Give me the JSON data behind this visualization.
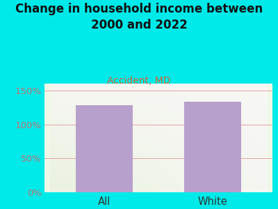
{
  "title": "Change in household income between\n2000 and 2022",
  "subtitle": "Accident, MD",
  "categories": [
    "All",
    "White"
  ],
  "values": [
    128,
    133
  ],
  "bar_color": "#b8a0cc",
  "background_color": "#00eaea",
  "title_color": "#111111",
  "subtitle_color": "#cc6633",
  "ytick_label_color": "#c07070",
  "xlabel_color": "#333333",
  "ytick_labels": [
    "0%",
    "50%",
    "100%",
    "150%"
  ],
  "ytick_values": [
    0,
    50,
    100,
    150
  ],
  "ylim": [
    0,
    160
  ],
  "grid_color": "#e8a0a0",
  "title_fontsize": 12,
  "subtitle_fontsize": 10,
  "tick_fontsize": 9.5,
  "xlabel_fontsize": 10.5
}
